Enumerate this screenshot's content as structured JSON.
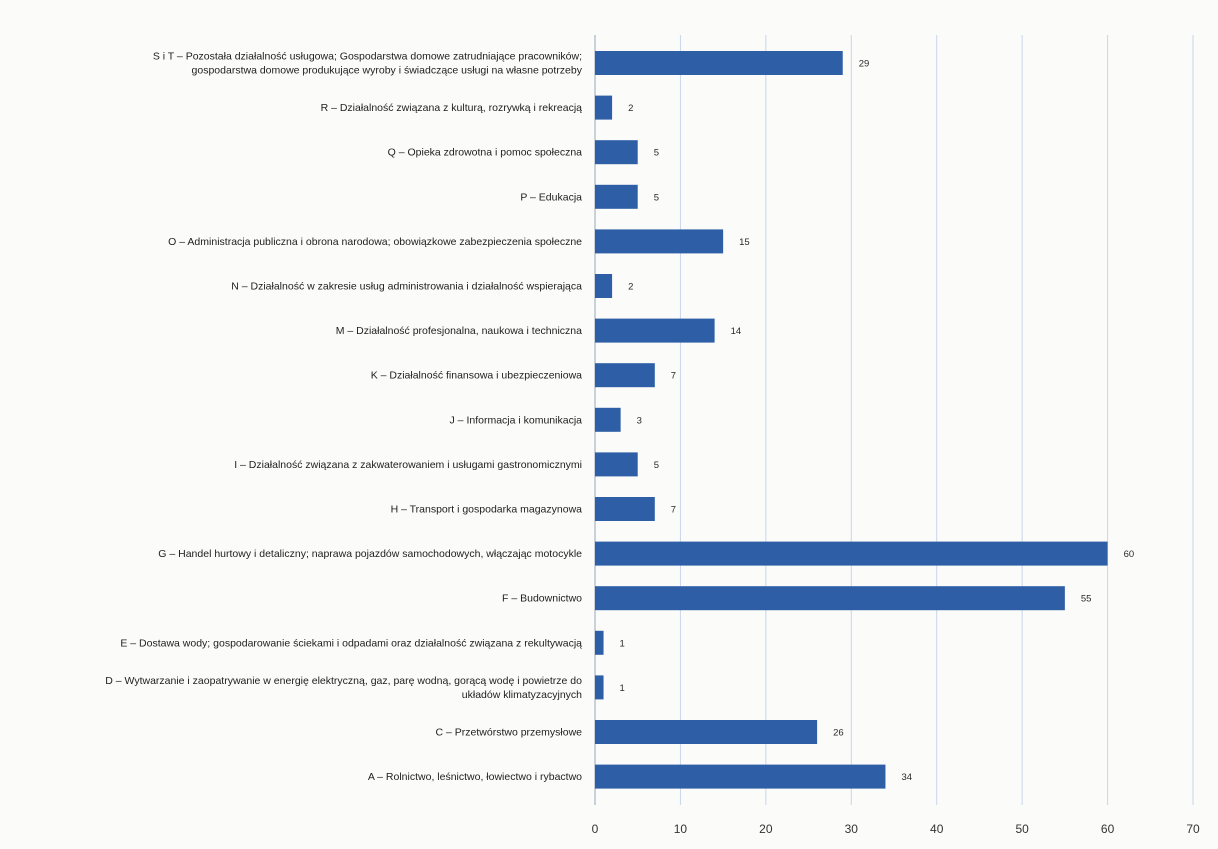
{
  "chart_data": {
    "type": "bar",
    "orientation": "horizontal",
    "title": "",
    "xlabel": "",
    "ylabel": "",
    "xlim": [
      0,
      70
    ],
    "xticks": [
      0,
      10,
      20,
      30,
      40,
      50,
      60,
      70
    ],
    "grid": true,
    "legend": "none",
    "bar_color": "#2e5fa6",
    "categories": [
      [
        "S i T – Pozostała działalność usługowa; Gospodarstwa domowe zatrudniające pracowników;",
        "gospodarstwa domowe produkujące wyroby i świadczące usługi na własne potrzeby"
      ],
      [
        "R – Działalność związana z kulturą, rozrywką i rekreacją"
      ],
      [
        "Q – Opieka zdrowotna i pomoc społeczna"
      ],
      [
        "P – Edukacja"
      ],
      [
        "O – Administracja publiczna i obrona narodowa; obowiązkowe zabezpieczenia społeczne"
      ],
      [
        "N – Działalność w zakresie usług administrowania i działalność wspierająca"
      ],
      [
        "M – Działalność profesjonalna, naukowa i techniczna"
      ],
      [
        "K – Działalność finansowa i ubezpieczeniowa"
      ],
      [
        "J – Informacja i komunikacja"
      ],
      [
        "I – Działalność związana z zakwaterowaniem i usługami gastronomicznymi"
      ],
      [
        "H – Transport i gospodarka magazynowa"
      ],
      [
        "G – Handel hurtowy i detaliczny; naprawa pojazdów samochodowych, włączając motocykle"
      ],
      [
        "F – Budownictwo"
      ],
      [
        "E – Dostawa wody; gospodarowanie ściekami i odpadami oraz działalność związana z rekultywacją"
      ],
      [
        "D – Wytwarzanie i zaopatrywanie w energię elektryczną, gaz, parę wodną, gorącą wodę i powietrze do",
        "układów klimatyzacyjnych"
      ],
      [
        "C – Przetwórstwo przemysłowe"
      ],
      [
        "A – Rolnictwo, leśnictwo, łowiectwo i rybactwo"
      ]
    ],
    "values": [
      29,
      2,
      5,
      5,
      15,
      2,
      14,
      7,
      3,
      5,
      7,
      60,
      55,
      1,
      1,
      26,
      34
    ]
  }
}
